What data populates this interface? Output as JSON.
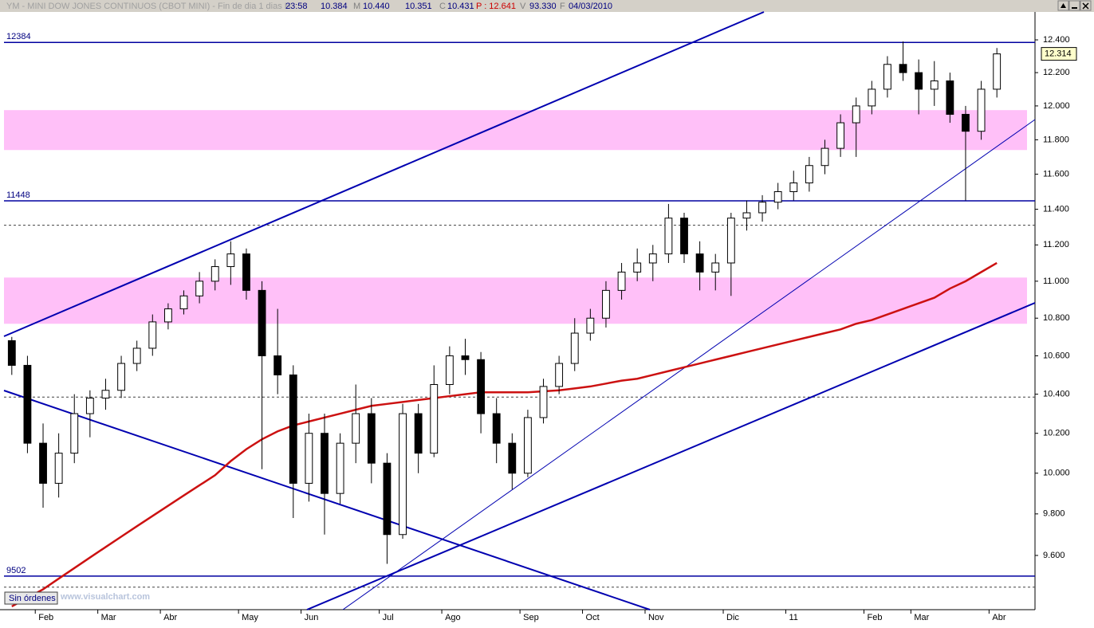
{
  "header": {
    "title": "YM - MINI DOW JONES CONTINUOS (CBOT MINI) - Fin de dia 1 dias H",
    "time": "23:58",
    "open": "10.384",
    "high_key": "M",
    "high": "10.440",
    "low": "10.351",
    "close_key": "C",
    "close": "10.431",
    "prev": "P : 12.641",
    "volume_key": "V",
    "volume": "93.330",
    "date_key": "F",
    "date": "04/03/2010"
  },
  "chart_data": {
    "type": "candlestick",
    "log_scale": true,
    "ylim": [
      9345,
      12573
    ],
    "yticks": [
      {
        "value": 12400,
        "label": "12.400"
      },
      {
        "value": 12200,
        "label": "12.200"
      },
      {
        "value": 12000,
        "label": "12.000"
      },
      {
        "value": 11800,
        "label": "11.800"
      },
      {
        "value": 11600,
        "label": "11.600"
      },
      {
        "value": 11400,
        "label": "11.400"
      },
      {
        "value": 11200,
        "label": "11.200"
      },
      {
        "value": 11000,
        "label": "11.000"
      },
      {
        "value": 10800,
        "label": "10.800"
      },
      {
        "value": 10600,
        "label": "10.600"
      },
      {
        "value": 10400,
        "label": "10.400"
      },
      {
        "value": 10200,
        "label": "10.200"
      },
      {
        "value": 10000,
        "label": "10.000"
      },
      {
        "value": 9800,
        "label": "9.800"
      },
      {
        "value": 9600,
        "label": "9.600"
      }
    ],
    "categories": [
      null,
      null,
      "Feb",
      null,
      null,
      null,
      "Mar",
      null,
      null,
      null,
      "Abr",
      null,
      null,
      null,
      null,
      "May",
      null,
      null,
      null,
      "Jun",
      null,
      null,
      null,
      null,
      "Jul",
      null,
      null,
      null,
      "Ago",
      null,
      null,
      null,
      null,
      "Sep",
      null,
      null,
      null,
      "Oct",
      null,
      null,
      null,
      "Nov",
      null,
      null,
      null,
      null,
      "Dic",
      null,
      null,
      null,
      "11",
      null,
      null,
      null,
      null,
      "Feb",
      null,
      null,
      "Mar",
      null,
      null,
      null,
      null,
      "Abr"
    ],
    "ohlc": {
      "open": [
        10680,
        10550,
        10150,
        9950,
        10100,
        10300,
        10380,
        10420,
        10560,
        10640,
        10780,
        10850,
        10920,
        11000,
        11080,
        11150,
        10950,
        10600,
        10500,
        9950,
        10200,
        9900,
        10150,
        10300,
        10050,
        9700,
        10300,
        10100,
        10450,
        10600,
        10580,
        10300,
        10150,
        10000,
        10280,
        10440,
        10560,
        10720,
        10800,
        10950,
        11050,
        11100,
        11150,
        11350,
        11150,
        11050,
        11100,
        11350,
        11380,
        11440,
        11500,
        11550,
        11650,
        11750,
        11900,
        12000,
        12100,
        12250,
        12200,
        12100,
        12150,
        11950,
        11850,
        12100
      ],
      "high": [
        10700,
        10600,
        10250,
        10200,
        10400,
        10420,
        10480,
        10600,
        10680,
        10820,
        10880,
        10950,
        11050,
        11120,
        11220,
        11180,
        11000,
        10850,
        10550,
        10300,
        10300,
        10200,
        10450,
        10380,
        10100,
        10350,
        10350,
        10550,
        10650,
        10690,
        10620,
        10380,
        10200,
        10320,
        10480,
        10600,
        10800,
        10850,
        11000,
        11100,
        11180,
        11200,
        11430,
        11380,
        11220,
        11150,
        11380,
        11450,
        11480,
        11550,
        11620,
        11700,
        11800,
        11950,
        12050,
        12150,
        12300,
        12390,
        12280,
        12270,
        12200,
        12000,
        12150,
        12350
      ],
      "low": [
        10500,
        10100,
        9830,
        9880,
        10050,
        10180,
        10320,
        10380,
        10520,
        10600,
        10740,
        10820,
        10880,
        10950,
        10980,
        10900,
        10020,
        10400,
        9780,
        9860,
        9700,
        9850,
        10050,
        9950,
        9560,
        9680,
        10000,
        10080,
        10400,
        10500,
        10200,
        10050,
        9920,
        9980,
        10250,
        10400,
        10520,
        10680,
        10750,
        10900,
        11000,
        11000,
        11100,
        11100,
        10950,
        10950,
        10920,
        11280,
        11330,
        11400,
        11450,
        11500,
        11600,
        11700,
        11700,
        11950,
        12050,
        12150,
        11950,
        12000,
        11900,
        11450,
        11800,
        12050
      ],
      "close": [
        10550,
        10150,
        9950,
        10100,
        10300,
        10380,
        10420,
        10560,
        10640,
        10780,
        10850,
        10920,
        11000,
        11080,
        11150,
        10950,
        10600,
        10500,
        9950,
        10200,
        9900,
        10150,
        10300,
        10050,
        9700,
        10300,
        10100,
        10450,
        10600,
        10580,
        10300,
        10150,
        10000,
        10280,
        10440,
        10560,
        10720,
        10800,
        10950,
        11050,
        11100,
        11150,
        11350,
        11150,
        11050,
        11100,
        11350,
        11380,
        11440,
        11500,
        11550,
        11650,
        11750,
        11900,
        12000,
        12100,
        12250,
        12200,
        12100,
        12150,
        11950,
        11850,
        12100,
        12314
      ]
    },
    "moving_average": {
      "color": "#cc1111",
      "values": [
        9360,
        9400,
        9440,
        9490,
        9540,
        9590,
        9640,
        9690,
        9740,
        9790,
        9840,
        9890,
        9940,
        9990,
        10060,
        10120,
        10170,
        10210,
        10240,
        10260,
        10280,
        10300,
        10320,
        10340,
        10350,
        10360,
        10370,
        10380,
        10390,
        10400,
        10410,
        10410,
        10410,
        10410,
        10415,
        10420,
        10430,
        10440,
        10455,
        10470,
        10480,
        10500,
        10520,
        10540,
        10560,
        10580,
        10600,
        10620,
        10640,
        10660,
        10680,
        10700,
        10720,
        10740,
        10770,
        10790,
        10820,
        10850,
        10880,
        10910,
        10960,
        11000,
        11050,
        11100
      ]
    },
    "levels": [
      12384,
      11448,
      9502
    ],
    "dashed_levels": [
      11310,
      10385,
      9450
    ],
    "zones": [
      [
        11740,
        11975
      ],
      [
        10770,
        11020
      ]
    ],
    "last_price": {
      "value": 12314,
      "label": "12.314"
    }
  },
  "footer": {
    "status": "Sin órdenes",
    "watermark": "www.visualchart.com"
  }
}
